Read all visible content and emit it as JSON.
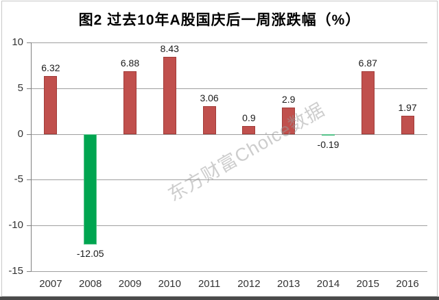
{
  "title": "图2 过去10年A股国庆后一周涨跌幅（%）",
  "watermark": "东方财富Choice数据",
  "chart_data": {
    "type": "bar",
    "title": "图2 过去10年A股国庆后一周涨跌幅（%）",
    "categories": [
      "2007",
      "2008",
      "2009",
      "2010",
      "2011",
      "2012",
      "2013",
      "2014",
      "2015",
      "2016"
    ],
    "values": [
      6.32,
      -12.05,
      6.88,
      8.43,
      3.06,
      0.9,
      2.9,
      -0.19,
      6.87,
      1.97
    ],
    "value_labels": [
      "6.32",
      "-12.05",
      "6.88",
      "8.43",
      "3.06",
      "0.9",
      "2.9",
      "-0.19",
      "6.87",
      "1.97"
    ],
    "xlabel": "",
    "ylabel": "",
    "ylim": [
      -15,
      10
    ],
    "yticks": [
      10,
      5,
      0,
      -5,
      -10,
      -15
    ],
    "grid": true,
    "legend_position": "none"
  },
  "colors": {
    "positive_fill": "#c0504d",
    "positive_border": "#a13b38",
    "negative_fill": "#00a550",
    "negative_border": "#55c289",
    "gridline": "#9e9e9e",
    "axis": "#7f7f7f",
    "tick_text": "#333333",
    "title_text": "#000000",
    "watermark_text": "#9c9c9c",
    "frame_border": "#c8c8c8",
    "bottom_bar": "#4a4a4a",
    "background": "#ffffff"
  }
}
